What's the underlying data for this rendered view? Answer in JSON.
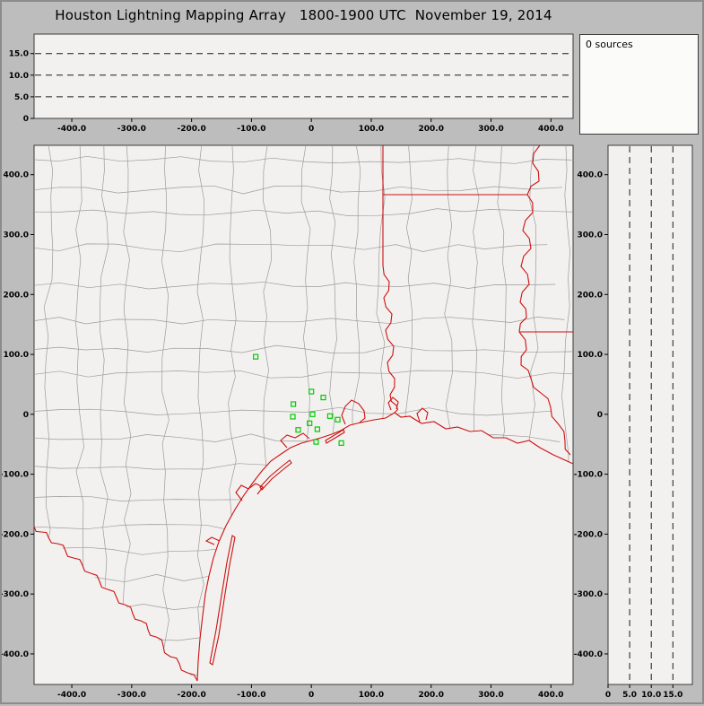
{
  "title": "Houston Lightning Mapping Array   1800-1900 UTC  November 19, 2014",
  "sources_panel": {
    "label": "0 sources"
  },
  "colors": {
    "window_bg": "#bdbdbd",
    "panel_bg": "#f2f1ef",
    "sources_bg": "#fbfbfa",
    "frame": "#3c3c3c",
    "county_line": "#9b9b9b",
    "state_border": "#cc1111",
    "station_marker": "#00cc00",
    "gridline": "#1a1a1a"
  },
  "chart_data": [
    {
      "type": "scatter",
      "name": "altitude-vs-east-west",
      "xlim": [
        -463,
        437
      ],
      "ylim": [
        0,
        19.5
      ],
      "x_ticks": [
        {
          "v": -400,
          "label": "-400.0"
        },
        {
          "v": -300,
          "label": "-300.0"
        },
        {
          "v": -200,
          "label": "-200.0"
        },
        {
          "v": -100,
          "label": "-100.0"
        },
        {
          "v": 0,
          "label": "0"
        },
        {
          "v": 100,
          "label": "100.0"
        },
        {
          "v": 200,
          "label": "200.0"
        },
        {
          "v": 300,
          "label": "300.0"
        },
        {
          "v": 400,
          "label": "400.0"
        }
      ],
      "y_ticks": [
        {
          "v": 15,
          "label": "15.0"
        },
        {
          "v": 10,
          "label": "10.0"
        },
        {
          "v": 5,
          "label": "5.0"
        },
        {
          "v": 0,
          "label": "0"
        }
      ],
      "dashed_gridlines": [
        15,
        10,
        5
      ],
      "points": []
    },
    {
      "type": "scatter",
      "name": "plan-view-map",
      "units": "km",
      "xlim": [
        -463,
        437
      ],
      "ylim": [
        -451,
        449
      ],
      "x_ticks": [
        {
          "v": -400,
          "label": "-400.0"
        },
        {
          "v": -300,
          "label": "-300.0"
        },
        {
          "v": -200,
          "label": "-200.0"
        },
        {
          "v": -100,
          "label": "-100.0"
        },
        {
          "v": 0,
          "label": "0"
        },
        {
          "v": 100,
          "label": "100.0"
        },
        {
          "v": 200,
          "label": "200.0"
        },
        {
          "v": 300,
          "label": "300.0"
        },
        {
          "v": 400,
          "label": "400.0"
        }
      ],
      "y_ticks": [
        {
          "v": 400,
          "label": "400.0"
        },
        {
          "v": 300,
          "label": "300.0"
        },
        {
          "v": 200,
          "label": "200.0"
        },
        {
          "v": 100,
          "label": "100.0"
        },
        {
          "v": 0,
          "label": "0"
        },
        {
          "v": -100,
          "label": "-100.0"
        },
        {
          "v": -200,
          "label": "-200.0"
        },
        {
          "v": -300,
          "label": "-300.0"
        },
        {
          "v": -400,
          "label": "-400.0"
        }
      ],
      "stations_km": [
        [
          -93,
          96
        ],
        [
          0,
          38
        ],
        [
          20,
          28
        ],
        [
          -30,
          17
        ],
        [
          -31,
          -4
        ],
        [
          2,
          0
        ],
        [
          -3,
          -15
        ],
        [
          -22,
          -26
        ],
        [
          10,
          -25
        ],
        [
          31,
          -3
        ],
        [
          44,
          -9
        ],
        [
          8,
          -46
        ],
        [
          50,
          -48
        ]
      ],
      "map_layers": [
        "county-boundaries",
        "state-borders",
        "coastline",
        "stations"
      ],
      "points": []
    },
    {
      "type": "scatter",
      "name": "altitude-vs-north-south",
      "xlim": [
        0,
        19.5
      ],
      "ylim": [
        -451,
        449
      ],
      "x_ticks": [
        {
          "v": 0,
          "label": "0"
        },
        {
          "v": 5,
          "label": "5.0"
        },
        {
          "v": 10,
          "label": "10.0"
        },
        {
          "v": 15,
          "label": "15.0"
        }
      ],
      "y_ticks": [
        {
          "v": 400,
          "label": "400.0"
        },
        {
          "v": 300,
          "label": "300.0"
        },
        {
          "v": 200,
          "label": "200.0"
        },
        {
          "v": 100,
          "label": "100.0"
        },
        {
          "v": 0,
          "label": "0"
        },
        {
          "v": -100,
          "label": "-100.0"
        },
        {
          "v": -200,
          "label": "-200.0"
        },
        {
          "v": -300,
          "label": "-300.0"
        },
        {
          "v": -400,
          "label": "-400.0"
        }
      ],
      "dashed_gridlines": [
        5,
        10,
        15
      ],
      "points": []
    }
  ]
}
